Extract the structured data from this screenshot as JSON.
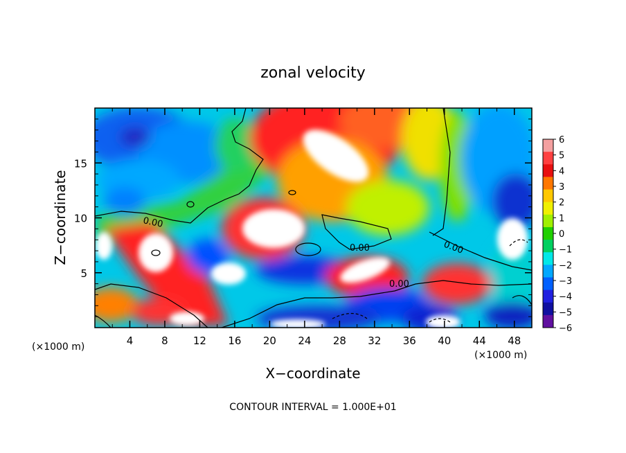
{
  "chart_data": {
    "type": "heatmap",
    "title": "zonal velocity",
    "xlabel": "X−coordinate",
    "ylabel": "Z−coordinate",
    "x_unit_left": "(×1000 m)",
    "x_unit_right": "(×1000 m)",
    "xlim": [
      0,
      50
    ],
    "ylim": [
      0,
      20
    ],
    "x_ticks": [
      "4",
      "8",
      "12",
      "16",
      "20",
      "24",
      "28",
      "32",
      "36",
      "40",
      "44",
      "48"
    ],
    "y_ticks": [
      "5",
      "10",
      "15"
    ],
    "colorbar": {
      "range": [
        -6,
        6
      ],
      "ticks": [
        "6",
        "5",
        "4",
        "3",
        "2",
        "1",
        "0",
        "−1",
        "−2",
        "−3",
        "−4",
        "−5",
        "−6"
      ],
      "colors": [
        "#f4a0a0",
        "#ff4040",
        "#e81010",
        "#ff7700",
        "#ffc800",
        "#f0f000",
        "#a0f000",
        "#20d000",
        "#00d060",
        "#00e8e8",
        "#00a8ff",
        "#0060ff",
        "#2020e0",
        "#1010a0",
        "#6010a0"
      ]
    },
    "contour_labels": [
      "0.00",
      "0.00",
      "0.00",
      "0.00"
    ],
    "footer": "CONTOUR INTERVAL = 1.000E+01"
  }
}
